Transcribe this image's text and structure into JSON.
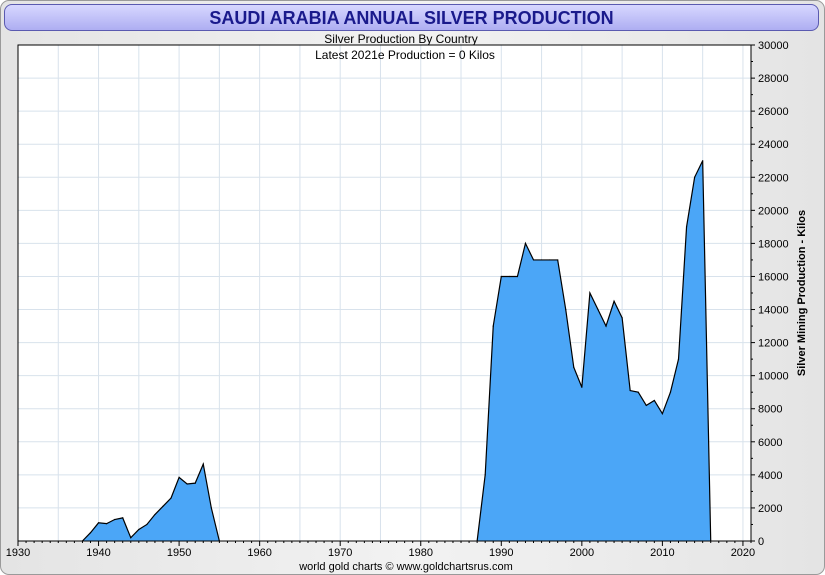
{
  "header": {
    "title": "SAUDI ARABIA ANNUAL SILVER PRODUCTION",
    "subtitle": "Silver Production By Country",
    "latest_note": "Latest 2021e Production = 0 Kilos"
  },
  "footer": {
    "credit": "world gold charts © www.goldchartsrus.com"
  },
  "colors": {
    "fill": "#4ba6f7",
    "stroke": "#000000",
    "grid": "#d8e2ec",
    "title_text": "#1a1a8c"
  },
  "chart_data": {
    "type": "area",
    "title": "SAUDI ARABIA ANNUAL SILVER PRODUCTION",
    "subtitle": "Silver Production By Country",
    "annotation": "Latest 2021e Production = 0 Kilos",
    "xlabel": "",
    "ylabel": "Silver Mining Production - Kilos",
    "xlim": [
      1930,
      2021
    ],
    "ylim": [
      0,
      30000
    ],
    "x_ticks": [
      "1930",
      "1940",
      "1950",
      "1960",
      "1970",
      "1980",
      "1990",
      "2000",
      "2010",
      "2020"
    ],
    "y_ticks": [
      "0",
      "2000",
      "4000",
      "6000",
      "8000",
      "10000",
      "12000",
      "14000",
      "16000",
      "18000",
      "20000",
      "22000",
      "24000",
      "26000",
      "28000",
      "30000"
    ],
    "grid": true,
    "y_axis_side": "right",
    "series": [
      {
        "name": "Saudi Arabia silver production (kilos)",
        "x": [
          1938,
          1939,
          1940,
          1941,
          1942,
          1943,
          1944,
          1945,
          1946,
          1947,
          1948,
          1949,
          1950,
          1951,
          1952,
          1953,
          1954,
          1955,
          1987,
          1988,
          1989,
          1990,
          1991,
          1992,
          1993,
          1994,
          1995,
          1996,
          1997,
          1998,
          1999,
          2000,
          2001,
          2002,
          2003,
          2004,
          2005,
          2006,
          2007,
          2008,
          2009,
          2010,
          2011,
          2012,
          2013,
          2014,
          2015,
          2016
        ],
        "y": [
          0,
          500,
          1100,
          1050,
          1300,
          1400,
          200,
          700,
          1000,
          1600,
          2100,
          2600,
          3850,
          3450,
          3500,
          4650,
          2000,
          0,
          0,
          4000,
          13000,
          16000,
          16000,
          16000,
          18000,
          17000,
          17000,
          17000,
          17000,
          14000,
          10500,
          9300,
          15000,
          14000,
          13000,
          14500,
          13500,
          9100,
          9000,
          8200,
          8500,
          7700,
          9000,
          11000,
          19000,
          22000,
          23000,
          0
        ]
      }
    ]
  }
}
